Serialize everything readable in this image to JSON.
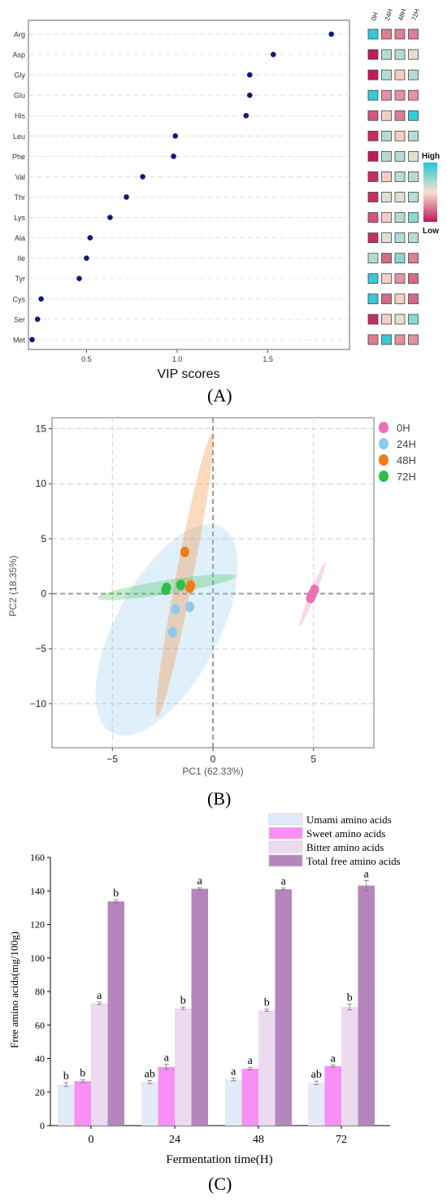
{
  "chart_data": [
    {
      "panel": "A",
      "type": "scatter",
      "xlabel": "VIP scores",
      "xticks": [
        0.5,
        1.0,
        1.5
      ],
      "xlim": [
        0.18,
        1.95
      ],
      "categories": [
        "Arg",
        "Asp",
        "Gly",
        "Glu",
        "His",
        "Leu",
        "Phe",
        "Val",
        "Thr",
        "Lys",
        "Ala",
        "Ile",
        "Tyr",
        "Cys",
        "Ser",
        "Met"
      ],
      "values": [
        1.85,
        1.53,
        1.4,
        1.4,
        1.38,
        0.99,
        0.98,
        0.81,
        0.72,
        0.63,
        0.52,
        0.5,
        0.46,
        0.25,
        0.23,
        0.2
      ],
      "point_color": "#0b1a7e",
      "grid": "dashed horizontal",
      "heatmap": {
        "columns": [
          "0H",
          "24H",
          "48H",
          "72H"
        ],
        "legend_high": "High",
        "legend_low": "Low",
        "scale_colors": [
          "#c2185b",
          "#f7e3cf",
          "#1ec8d8"
        ],
        "levels": [
          [
            0.95,
            0.25,
            0.25,
            0.25
          ],
          [
            0.0,
            0.65,
            0.65,
            0.55
          ],
          [
            0.0,
            0.65,
            0.45,
            0.65
          ],
          [
            0.95,
            0.3,
            0.3,
            0.3
          ],
          [
            0.15,
            0.45,
            0.25,
            0.95
          ],
          [
            0.05,
            0.65,
            0.45,
            0.65
          ],
          [
            0.0,
            0.65,
            0.65,
            0.55
          ],
          [
            0.05,
            0.45,
            0.65,
            0.65
          ],
          [
            0.05,
            0.55,
            0.55,
            0.65
          ],
          [
            0.15,
            0.45,
            0.65,
            0.75
          ],
          [
            0.05,
            0.55,
            0.65,
            0.65
          ],
          [
            0.65,
            0.2,
            0.75,
            0.25
          ],
          [
            0.95,
            0.45,
            0.3,
            0.2
          ],
          [
            0.95,
            0.2,
            0.45,
            0.2
          ],
          [
            0.05,
            0.45,
            0.55,
            0.75
          ],
          [
            0.25,
            0.95,
            0.3,
            0.3
          ]
        ]
      }
    },
    {
      "panel": "B",
      "type": "scatter",
      "xlabel": "PC1 (62.33%)",
      "ylabel": "PC2 (18.35%)",
      "xlim": [
        -8,
        8
      ],
      "ylim": [
        -14,
        16
      ],
      "xticks": [
        -5,
        0,
        5
      ],
      "yticks": [
        -10,
        -5,
        0,
        5,
        10,
        15
      ],
      "legend_position": "top-right",
      "series": [
        {
          "name": "0H",
          "color": "#f06eb4",
          "points": [
            [
              4.85,
              -0.4
            ],
            [
              4.95,
              0.0
            ],
            [
              5.05,
              0.35
            ],
            [
              4.9,
              -0.2
            ]
          ],
          "ellipse": {
            "cx": 4.95,
            "cy": -0.05,
            "rx": 2.2,
            "ry": 0.18,
            "angle_deg": 68
          }
        },
        {
          "name": "24H",
          "color": "#8fc9ec",
          "points": [
            [
              -1.85,
              -1.4
            ],
            [
              -1.15,
              -1.2
            ],
            [
              -2.0,
              -3.5
            ]
          ],
          "ellipse": {
            "cx": -2.3,
            "cy": -3.3,
            "rx": 7.5,
            "ry": 3.3,
            "angle_deg": 62
          }
        },
        {
          "name": "48H",
          "color": "#f47b16",
          "points": [
            [
              -1.4,
              3.8
            ],
            [
              -1.15,
              0.55
            ],
            [
              -1.1,
              0.75
            ]
          ],
          "ellipse": {
            "cx": -1.4,
            "cy": 1.7,
            "rx": 9.3,
            "ry": 0.55,
            "angle_deg": 79
          }
        },
        {
          "name": "72H",
          "color": "#2cbf4a",
          "points": [
            [
              -2.35,
              0.35
            ],
            [
              -2.3,
              0.55
            ],
            [
              -1.6,
              0.8
            ]
          ],
          "ellipse": {
            "cx": -2.3,
            "cy": 0.6,
            "rx": 4.5,
            "ry": 0.45,
            "angle_deg": 9
          }
        }
      ]
    },
    {
      "panel": "C",
      "type": "bar",
      "xlabel": "Fermentation time(H)",
      "ylabel": "Free amino acids(mg/100g)",
      "ylim": [
        0,
        160
      ],
      "yticks": [
        0,
        20,
        40,
        60,
        80,
        100,
        120,
        140,
        160
      ],
      "categories": [
        "0",
        "24",
        "48",
        "72"
      ],
      "legend_position": "top-right",
      "series": [
        {
          "name": "Umami amino acids",
          "color": "#e3eaf9",
          "values": [
            24.5,
            26.0,
            27.5,
            25.5
          ],
          "errors": [
            1.2,
            0.9,
            0.8,
            1.1
          ],
          "letters": [
            "b",
            "ab",
            "a",
            "ab"
          ]
        },
        {
          "name": "Sweet amino acids",
          "color": "#f78ff4",
          "values": [
            26.5,
            35.0,
            34.0,
            35.5
          ],
          "errors": [
            0.8,
            1.6,
            0.8,
            0.6
          ],
          "letters": [
            "b",
            "a",
            "a",
            "a"
          ]
        },
        {
          "name": "Bitter amino acids",
          "color": "#ecdaef",
          "values": [
            73.0,
            70.0,
            68.8,
            70.8
          ],
          "errors": [
            0.8,
            0.7,
            0.7,
            1.8
          ],
          "letters": [
            "a",
            "b",
            "b",
            "b"
          ]
        },
        {
          "name": "Total free amino acids",
          "color": "#b586bd",
          "values": [
            133.8,
            141.3,
            141.0,
            143.2
          ],
          "errors": [
            1.0,
            0.7,
            0.7,
            3.0
          ],
          "letters": [
            "b",
            "a",
            "a",
            "a"
          ]
        }
      ]
    }
  ],
  "labels": {
    "A": "(A)",
    "B": "(B)",
    "C": "(C)"
  }
}
